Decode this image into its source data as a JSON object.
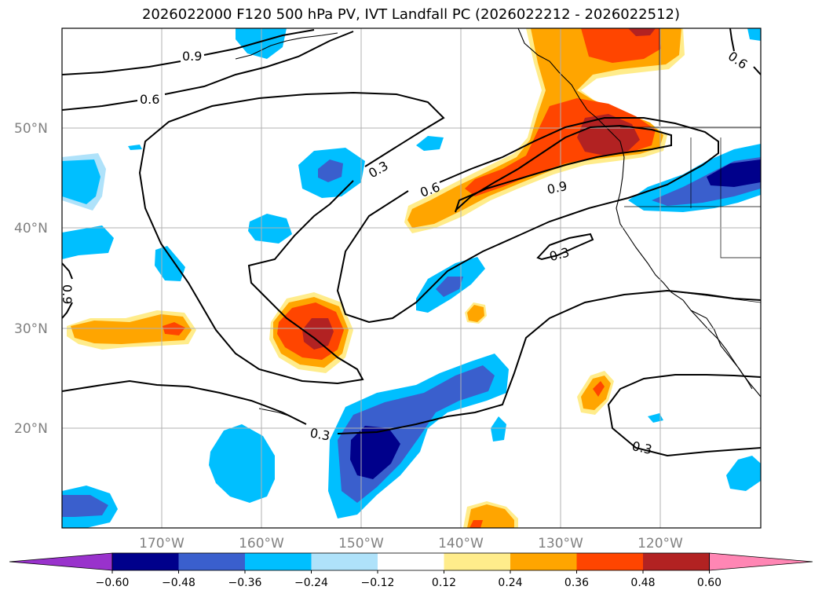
{
  "title": "2026022000 F120 500 hPa PV, IVT Landfall PC (2026022212 - 2026022512)",
  "lat_labels": [
    "50°N",
    "40°N",
    "30°N",
    "20°N"
  ],
  "lon_labels": [
    "170°W",
    "160°W",
    "150°W",
    "140°W",
    "130°W",
    "120°W"
  ],
  "contour_labels": [
    "0.9",
    "0.6",
    "0.3",
    "0.6",
    "0.9",
    "0.3",
    "0.9",
    "0.3",
    "0.3",
    "0.6"
  ],
  "colorbar": {
    "ticks": [
      "−0.60",
      "−0.48",
      "−0.36",
      "−0.24",
      "−0.12",
      "0.12",
      "0.24",
      "0.36",
      "0.48",
      "0.60"
    ],
    "colors": [
      "#9932cc",
      "#00008b",
      "#3a5fcd",
      "#00bfff",
      "#afe2fa",
      "#ffffff",
      "#ffec8b",
      "#ffa500",
      "#ff4500",
      "#b22222",
      "#ff86b4"
    ]
  },
  "colors": {
    "dark_blue": "#00008b",
    "blue": "#3a5fcd",
    "cyan": "#00bfff",
    "light_cyan": "#afe2fa",
    "yellow": "#ffec8b",
    "orange": "#ffa500",
    "red_orange": "#ff4500",
    "dark_red": "#b22222"
  }
}
